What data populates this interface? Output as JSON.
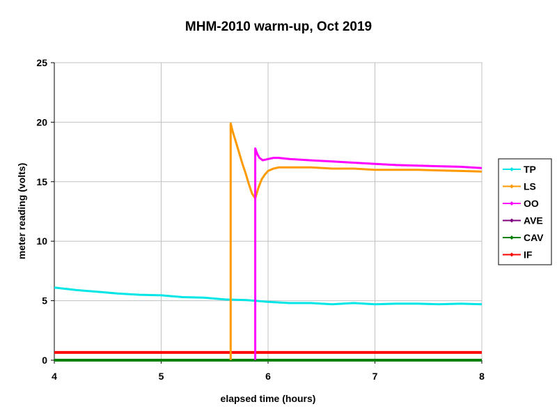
{
  "chart_data": {
    "type": "line",
    "title": "MHM-2010 warm-up, Oct 2019",
    "xlabel": "elapsed time (hours)",
    "ylabel": "meter reading (volts)",
    "xlim": [
      4,
      8
    ],
    "ylim": [
      0,
      25
    ],
    "xticks": [
      4,
      5,
      6,
      7,
      8
    ],
    "yticks": [
      0,
      5,
      10,
      15,
      20,
      25
    ],
    "grid": true,
    "legend_position": "right",
    "series": [
      {
        "name": "TP",
        "color": "#00e5e5",
        "x": [
          4.0,
          4.2,
          4.4,
          4.6,
          4.8,
          5.0,
          5.2,
          5.4,
          5.6,
          5.8,
          6.0,
          6.2,
          6.4,
          6.6,
          6.8,
          7.0,
          7.2,
          7.4,
          7.6,
          7.8,
          8.0
        ],
        "y": [
          6.1,
          5.9,
          5.75,
          5.6,
          5.5,
          5.45,
          5.3,
          5.25,
          5.1,
          5.05,
          4.9,
          4.8,
          4.8,
          4.7,
          4.8,
          4.7,
          4.75,
          4.75,
          4.7,
          4.75,
          4.7
        ]
      },
      {
        "name": "LS",
        "color": "#ff9900",
        "x": [
          5.65,
          5.65,
          5.67,
          5.7,
          5.73,
          5.76,
          5.79,
          5.82,
          5.85,
          5.88,
          5.91,
          5.94,
          5.97,
          6.0,
          6.05,
          6.1,
          6.2,
          6.4,
          6.6,
          6.8,
          7.0,
          7.2,
          7.4,
          7.6,
          7.8,
          8.0
        ],
        "y": [
          0.0,
          19.9,
          19.2,
          18.3,
          17.4,
          16.5,
          15.7,
          14.8,
          14.0,
          13.6,
          14.5,
          15.2,
          15.6,
          15.9,
          16.1,
          16.2,
          16.2,
          16.2,
          16.1,
          16.1,
          16.0,
          16.0,
          16.0,
          15.95,
          15.9,
          15.85
        ]
      },
      {
        "name": "OO",
        "color": "#ff00ff",
        "x": [
          5.88,
          5.88,
          5.9,
          5.92,
          5.95,
          6.0,
          6.05,
          6.1,
          6.2,
          6.4,
          6.6,
          6.8,
          7.0,
          7.2,
          7.4,
          7.6,
          7.8,
          8.0
        ],
        "y": [
          0.0,
          17.8,
          17.3,
          17.0,
          16.8,
          16.9,
          17.0,
          17.0,
          16.9,
          16.8,
          16.7,
          16.6,
          16.5,
          16.4,
          16.35,
          16.3,
          16.25,
          16.15
        ]
      },
      {
        "name": "AVE",
        "color": "#800080",
        "x": [],
        "y": []
      },
      {
        "name": "CAV",
        "color": "#008000",
        "x": [
          4.0,
          8.0
        ],
        "y": [
          0.0,
          0.0
        ]
      },
      {
        "name": "IF",
        "color": "#ff0000",
        "x": [
          4.0,
          8.0
        ],
        "y": [
          0.65,
          0.65
        ]
      }
    ]
  }
}
